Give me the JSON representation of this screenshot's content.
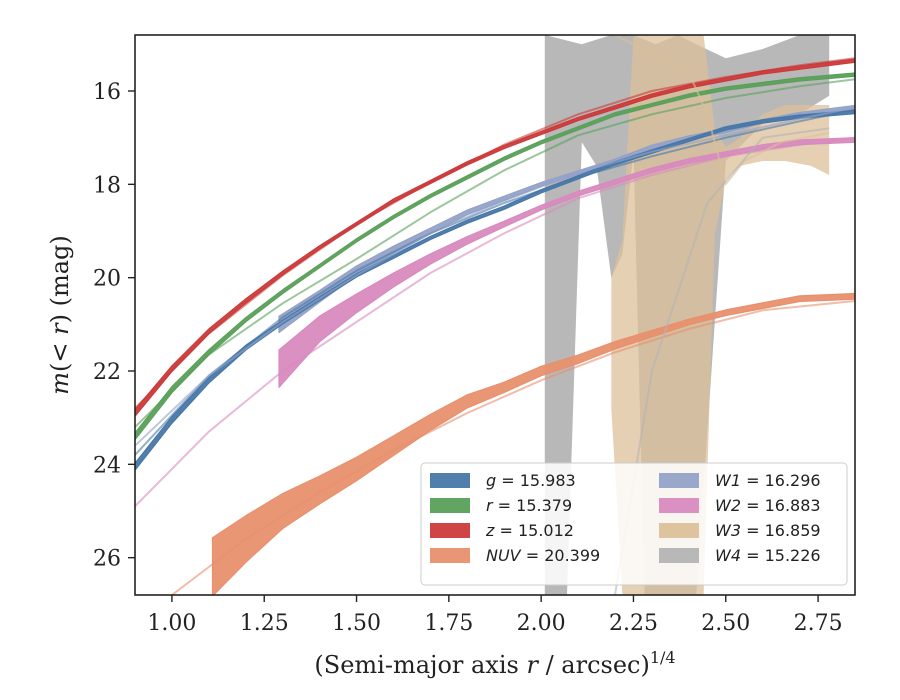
{
  "chart_data": {
    "type": "line",
    "title": "",
    "xlabel_parts": [
      "(Semi-major axis ",
      "r",
      " / arcsec)",
      "1/4"
    ],
    "ylabel_parts": [
      "m",
      "(< ",
      "r",
      ") (mag)"
    ],
    "xlim": [
      0.9,
      2.85
    ],
    "ylim": [
      26.8,
      14.8
    ],
    "y_inverted": true,
    "xticks": [
      1.0,
      1.25,
      1.5,
      1.75,
      2.0,
      2.25,
      2.5,
      2.75
    ],
    "xtick_labels": [
      "1.00",
      "1.25",
      "1.50",
      "1.75",
      "2.00",
      "2.25",
      "2.50",
      "2.75"
    ],
    "yticks": [
      16,
      18,
      20,
      22,
      24,
      26
    ],
    "ytick_labels": [
      "16",
      "18",
      "20",
      "22",
      "24",
      "26"
    ],
    "grid": false,
    "legend_position": "lower-right",
    "legend_columns": 2,
    "series": [
      {
        "name": "g = 15.983",
        "label_var": "g",
        "label_val": "15.983",
        "color": "#4878a8",
        "thin": {
          "x": [
            0.9,
            1.1,
            1.3,
            1.5,
            1.7,
            1.9,
            2.1,
            2.3,
            2.5,
            2.7,
            2.85
          ],
          "y": [
            23.8,
            22.1,
            20.85,
            19.85,
            19.05,
            18.4,
            17.85,
            17.4,
            17.0,
            16.65,
            16.4
          ]
        },
        "band": {
          "x": [
            0.9,
            1.0,
            1.1,
            1.2,
            1.3,
            1.4,
            1.5,
            1.6,
            1.7,
            1.8,
            1.9,
            2.0,
            2.1,
            2.2,
            2.3,
            2.4,
            2.5,
            2.6,
            2.7,
            2.85
          ],
          "y": [
            24.05,
            23.05,
            22.2,
            21.5,
            20.95,
            20.45,
            19.95,
            19.55,
            19.15,
            18.8,
            18.5,
            18.15,
            17.85,
            17.55,
            17.3,
            17.05,
            16.8,
            16.65,
            16.55,
            16.45
          ],
          "w": [
            0.15,
            0.14,
            0.12,
            0.1,
            0.08,
            0.08,
            0.07,
            0.07,
            0.07,
            0.07,
            0.07,
            0.07,
            0.07,
            0.07,
            0.07,
            0.07,
            0.07,
            0.07,
            0.07,
            0.07
          ]
        }
      },
      {
        "name": "r = 15.379",
        "label_var": "r",
        "label_val": "15.379",
        "color": "#5aa05a",
        "thin": {
          "x": [
            0.9,
            1.1,
            1.3,
            1.5,
            1.7,
            1.9,
            2.1,
            2.3,
            2.5,
            2.7,
            2.85
          ],
          "y": [
            23.2,
            21.65,
            20.55,
            19.6,
            18.6,
            17.7,
            16.95,
            16.5,
            16.15,
            15.9,
            15.75
          ]
        },
        "band": {
          "x": [
            0.9,
            1.0,
            1.1,
            1.2,
            1.3,
            1.4,
            1.5,
            1.6,
            1.7,
            1.8,
            1.9,
            2.0,
            2.1,
            2.2,
            2.3,
            2.4,
            2.5,
            2.6,
            2.7,
            2.85
          ],
          "y": [
            23.4,
            22.4,
            21.6,
            20.9,
            20.3,
            19.75,
            19.2,
            18.7,
            18.25,
            17.85,
            17.45,
            17.1,
            16.8,
            16.5,
            16.3,
            16.1,
            15.95,
            15.85,
            15.75,
            15.65
          ],
          "w": [
            0.15,
            0.13,
            0.11,
            0.09,
            0.08,
            0.07,
            0.07,
            0.07,
            0.07,
            0.07,
            0.07,
            0.07,
            0.07,
            0.07,
            0.07,
            0.07,
            0.07,
            0.07,
            0.07,
            0.07
          ]
        }
      },
      {
        "name": "z = 15.012",
        "label_var": "z",
        "label_val": "15.012",
        "color": "#cc3a3a",
        "thin": {
          "x": [
            0.9,
            1.1,
            1.3,
            1.5,
            1.7,
            1.9,
            2.1,
            2.3,
            2.5,
            2.7,
            2.85
          ],
          "y": [
            22.8,
            21.2,
            19.95,
            18.85,
            17.95,
            17.15,
            16.5,
            16.0,
            15.7,
            15.45,
            15.3
          ]
        },
        "band": {
          "x": [
            0.9,
            1.0,
            1.1,
            1.2,
            1.3,
            1.4,
            1.5,
            1.6,
            1.7,
            1.8,
            1.9,
            2.0,
            2.1,
            2.2,
            2.3,
            2.4,
            2.5,
            2.6,
            2.7,
            2.85
          ],
          "y": [
            22.9,
            21.95,
            21.15,
            20.5,
            19.9,
            19.35,
            18.85,
            18.35,
            17.95,
            17.55,
            17.2,
            16.9,
            16.6,
            16.35,
            16.1,
            15.9,
            15.75,
            15.6,
            15.5,
            15.35
          ],
          "w": [
            0.14,
            0.12,
            0.1,
            0.09,
            0.08,
            0.07,
            0.07,
            0.07,
            0.07,
            0.07,
            0.07,
            0.07,
            0.07,
            0.07,
            0.07,
            0.07,
            0.07,
            0.07,
            0.07,
            0.07
          ]
        }
      },
      {
        "name": "NUV = 20.399",
        "label_var": "NUV",
        "label_val": "20.399",
        "color": "#e8906e",
        "thin": {
          "x": [
            1.0,
            1.2,
            1.4,
            1.6,
            1.8,
            2.0,
            2.2,
            2.4,
            2.6,
            2.85
          ],
          "y": [
            26.8,
            25.6,
            24.6,
            23.7,
            22.9,
            22.2,
            21.6,
            21.1,
            20.7,
            20.5
          ]
        },
        "band": {
          "x": [
            1.11,
            1.2,
            1.3,
            1.4,
            1.5,
            1.6,
            1.7,
            1.8,
            1.9,
            2.0,
            2.1,
            2.2,
            2.3,
            2.4,
            2.5,
            2.6,
            2.7,
            2.85
          ],
          "y": [
            26.2,
            25.6,
            25.0,
            24.55,
            24.1,
            23.6,
            23.1,
            22.65,
            22.35,
            22.0,
            21.75,
            21.45,
            21.2,
            20.95,
            20.75,
            20.6,
            20.45,
            20.4
          ],
          "w": [
            1.25,
            1.0,
            0.75,
            0.6,
            0.5,
            0.42,
            0.34,
            0.28,
            0.22,
            0.2,
            0.18,
            0.16,
            0.14,
            0.12,
            0.12,
            0.12,
            0.12,
            0.12
          ]
        }
      },
      {
        "name": "W1 = 16.296",
        "label_var": "W1",
        "label_val": "16.296",
        "color": "#94a2c8",
        "thin": {
          "x": [
            0.9,
            1.1,
            1.3,
            1.5,
            1.7,
            1.9,
            2.1,
            2.3,
            2.5,
            2.7,
            2.85
          ],
          "y": [
            23.6,
            22.1,
            20.95,
            19.95,
            19.05,
            18.35,
            17.75,
            17.3,
            16.95,
            16.6,
            16.35
          ]
        },
        "band": {
          "x": [
            1.29,
            1.4,
            1.5,
            1.6,
            1.7,
            1.8,
            1.9,
            2.0,
            2.1,
            2.2,
            2.3,
            2.4,
            2.5,
            2.6,
            2.7,
            2.85
          ],
          "y": [
            21.0,
            20.4,
            19.85,
            19.4,
            19.0,
            18.6,
            18.3,
            18.0,
            17.75,
            17.5,
            17.2,
            17.0,
            16.85,
            16.65,
            16.5,
            16.35
          ],
          "w": [
            0.35,
            0.25,
            0.2,
            0.15,
            0.12,
            0.1,
            0.09,
            0.08,
            0.08,
            0.08,
            0.08,
            0.08,
            0.08,
            0.08,
            0.08,
            0.08
          ]
        }
      },
      {
        "name": "W2 = 16.883",
        "label_var": "W2",
        "label_val": "16.883",
        "color": "#d88abe",
        "thin": {
          "x": [
            0.9,
            1.1,
            1.3,
            1.5,
            1.7,
            1.9,
            2.1,
            2.3,
            2.5,
            2.7,
            2.85
          ],
          "y": [
            24.9,
            23.3,
            22.0,
            20.95,
            19.9,
            19.05,
            18.3,
            17.8,
            17.4,
            17.15,
            17.0
          ]
        },
        "band": {
          "x": [
            1.29,
            1.4,
            1.5,
            1.6,
            1.7,
            1.8,
            1.9,
            2.0,
            2.1,
            2.2,
            2.3,
            2.4,
            2.5,
            2.6,
            2.7,
            2.85
          ],
          "y": [
            21.95,
            21.1,
            20.55,
            20.05,
            19.6,
            19.2,
            18.85,
            18.5,
            18.2,
            17.95,
            17.7,
            17.5,
            17.35,
            17.2,
            17.1,
            17.05
          ],
          "w": [
            0.8,
            0.55,
            0.4,
            0.3,
            0.22,
            0.16,
            0.12,
            0.1,
            0.1,
            0.1,
            0.1,
            0.1,
            0.1,
            0.1,
            0.1,
            0.1
          ]
        }
      },
      {
        "name": "W3 = 16.859",
        "label_var": "W3",
        "label_val": "16.859",
        "color": "#dcc09a",
        "thin": {
          "x": [
            2.2,
            2.3,
            2.4,
            2.45,
            2.5,
            2.55,
            2.65,
            2.78
          ],
          "y": [
            14.8,
            15.2,
            15.6,
            16.5,
            18.0,
            17.5,
            17.1,
            16.9
          ]
        },
        "band_upper": {
          "x": [
            2.19,
            2.22,
            2.25,
            2.3,
            2.36,
            2.4,
            2.44,
            2.47,
            2.5,
            2.54,
            2.6,
            2.66,
            2.73,
            2.78
          ],
          "y": [
            20.0,
            19.2,
            14.8,
            14.8,
            14.8,
            14.8,
            14.8,
            16.8,
            17.2,
            17.0,
            16.5,
            16.3,
            16.3,
            16.3
          ]
        },
        "band_lower": {
          "x": [
            2.19,
            2.22,
            2.25,
            2.3,
            2.36,
            2.4,
            2.44,
            2.47,
            2.5,
            2.54,
            2.6,
            2.66,
            2.73,
            2.78
          ],
          "y": [
            22.8,
            26.8,
            26.8,
            26.8,
            26.8,
            26.8,
            26.8,
            19.1,
            17.9,
            17.6,
            17.5,
            17.5,
            17.6,
            17.8
          ]
        }
      },
      {
        "name": "W4 = 15.226",
        "label_var": "W4",
        "label_val": "15.226",
        "color": "#b4b4b4",
        "thin": {
          "x": [
            2.2,
            2.3,
            2.45,
            2.6,
            2.78
          ],
          "y": [
            26.8,
            22.0,
            18.4,
            17.0,
            16.8
          ]
        },
        "band_upper": {
          "x": [
            2.01,
            2.11,
            2.19,
            2.25,
            2.31,
            2.37,
            2.42,
            2.5,
            2.6,
            2.7,
            2.78
          ],
          "y": [
            14.8,
            15.0,
            14.8,
            14.8,
            15.0,
            14.8,
            15.0,
            15.3,
            15.1,
            14.8,
            14.8
          ]
        },
        "band_lower": {
          "x": [
            2.01,
            2.04,
            2.07,
            2.11,
            2.15,
            2.19,
            2.22,
            2.25,
            2.28,
            2.31,
            2.37,
            2.42,
            2.5,
            2.6,
            2.7,
            2.78
          ],
          "y": [
            26.8,
            26.8,
            26.8,
            17.1,
            17.6,
            20.0,
            19.5,
            17.3,
            26.8,
            26.8,
            26.8,
            26.8,
            17.5,
            16.7,
            16.5,
            16.1
          ]
        }
      }
    ]
  }
}
